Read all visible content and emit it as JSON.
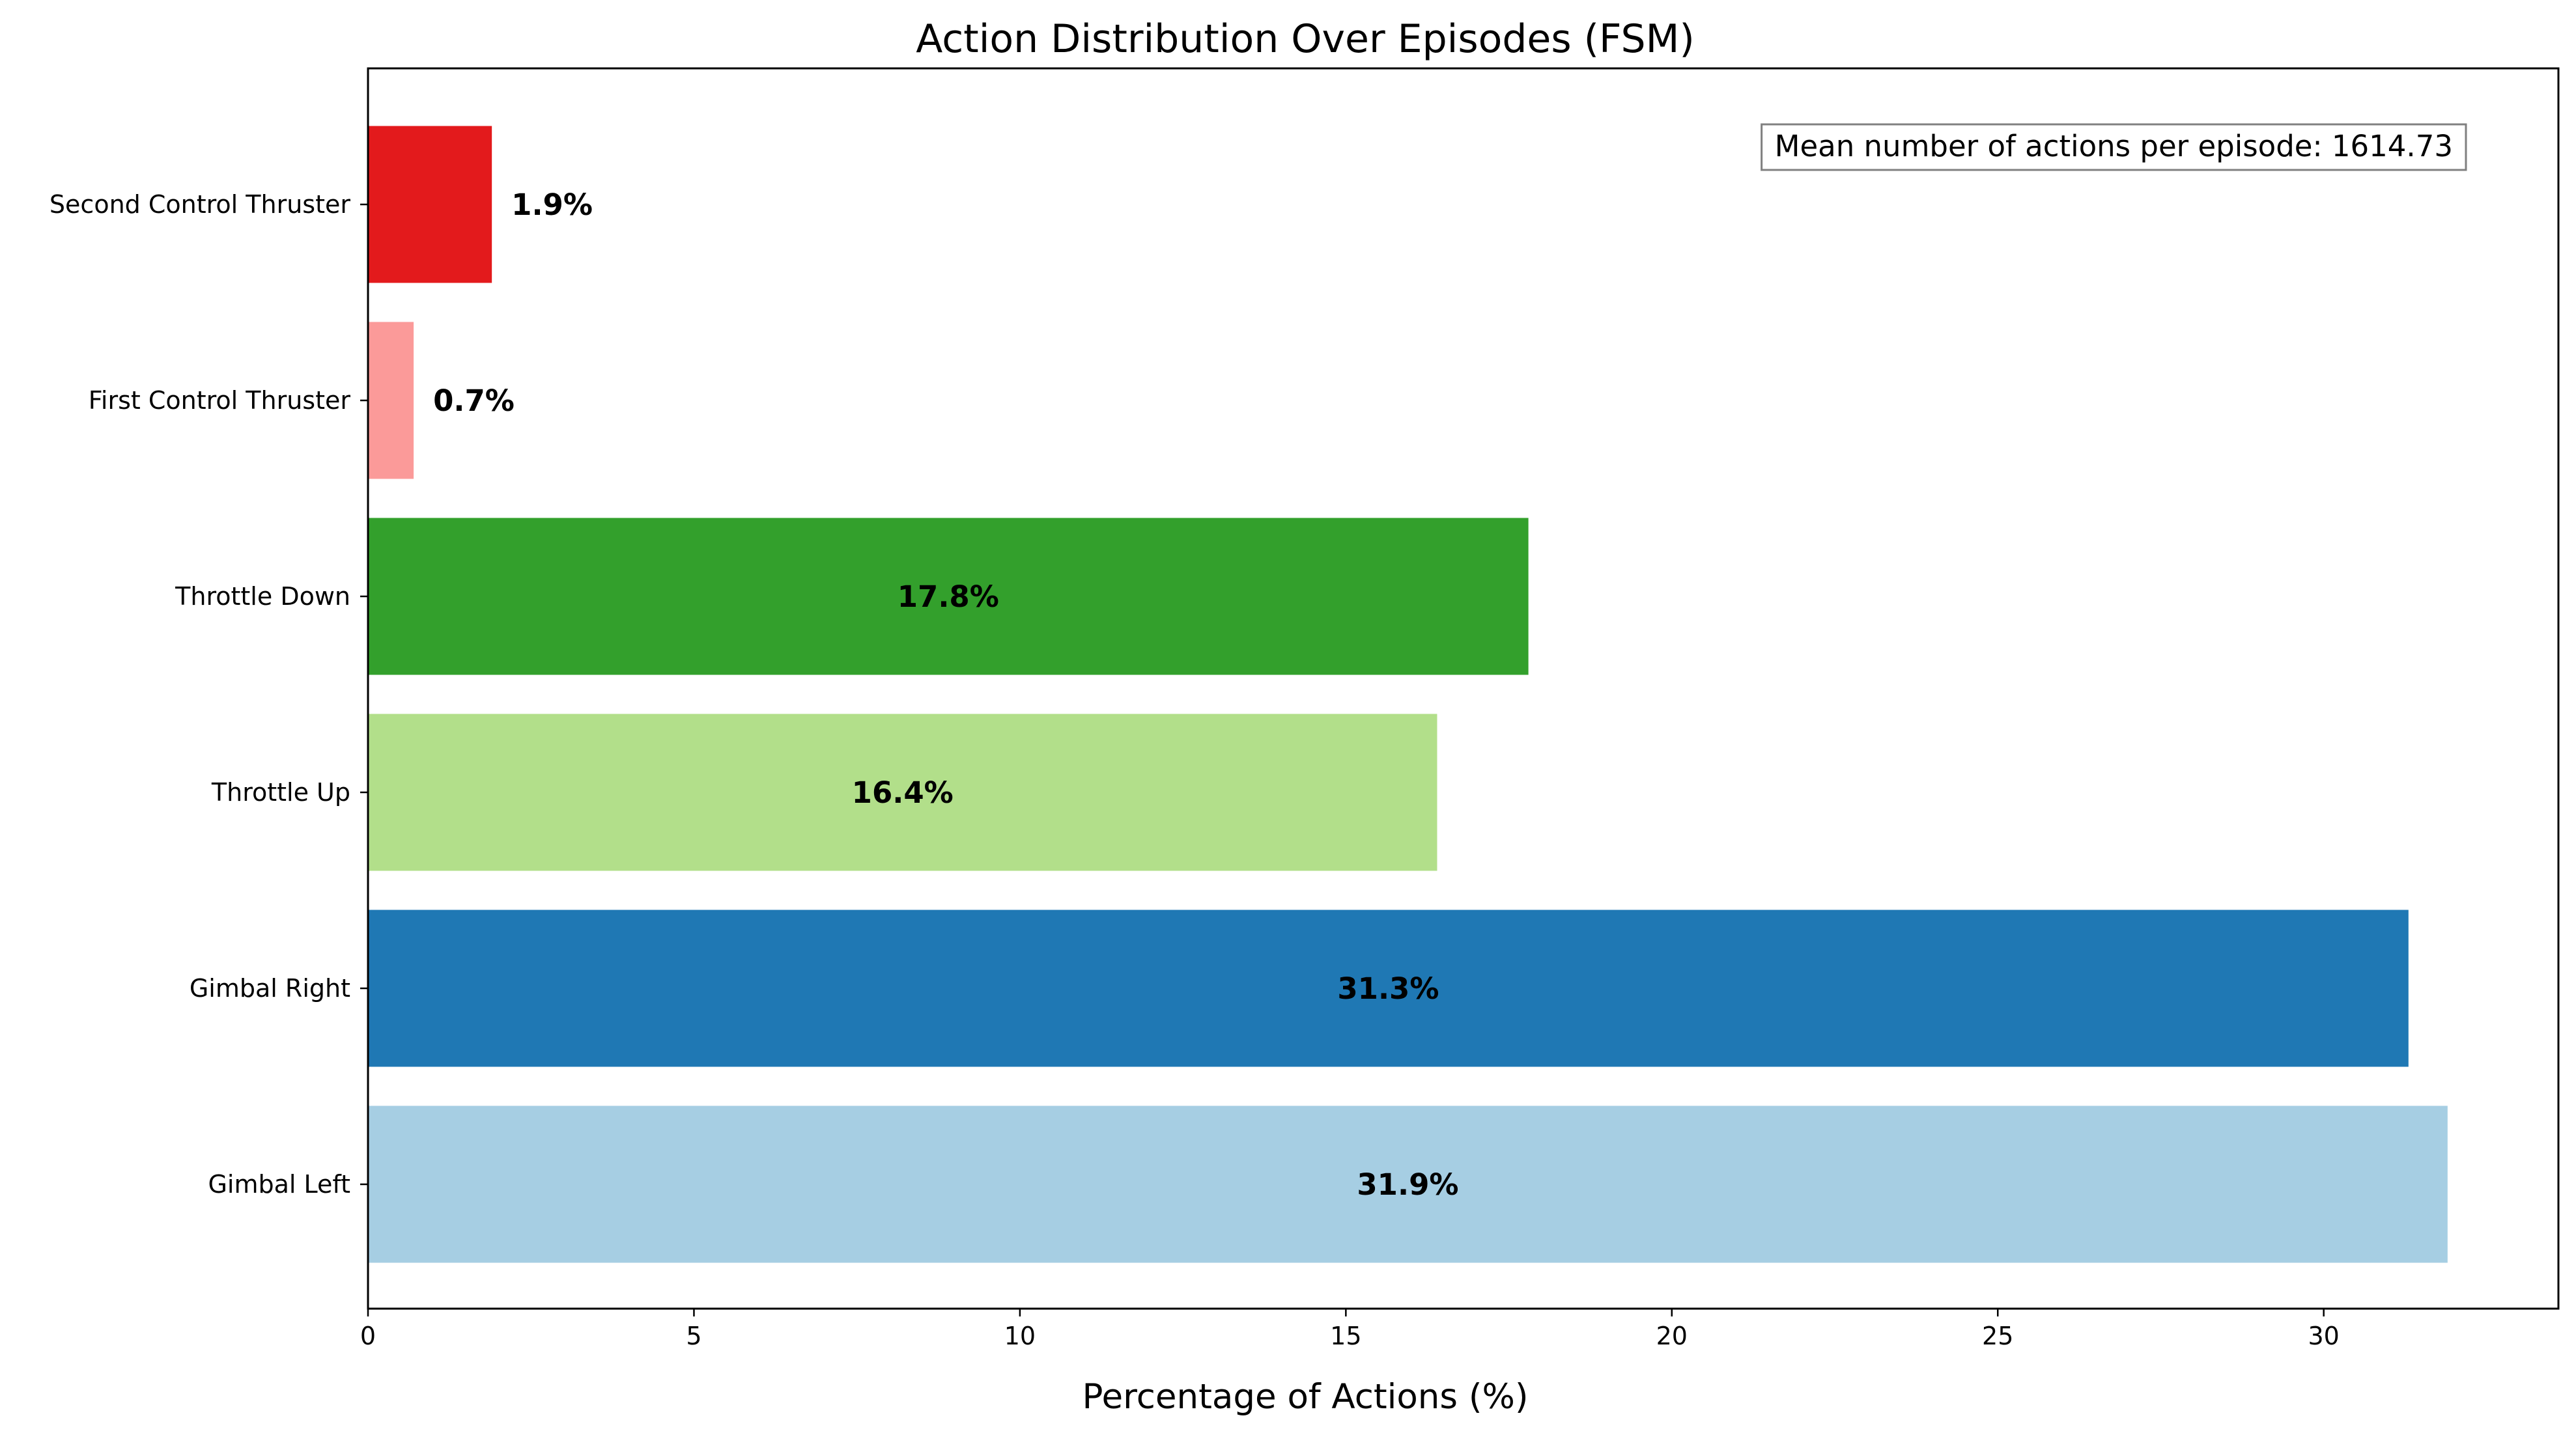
{
  "chart_data": {
    "type": "bar",
    "orientation": "horizontal",
    "title": "Action Distribution Over Episodes (FSM)",
    "xlabel": "Percentage of Actions (%)",
    "ylabel": "",
    "xlim": [
      0,
      33.6
    ],
    "x_ticks": [
      0,
      5,
      10,
      15,
      20,
      25,
      30
    ],
    "categories": [
      "Gimbal Left",
      "Gimbal Right",
      "Throttle Up",
      "Throttle Down",
      "First Control Thruster",
      "Second Control Thruster"
    ],
    "values": [
      31.9,
      31.3,
      16.4,
      17.8,
      0.7,
      1.9
    ],
    "data_labels": [
      "31.9%",
      "31.3%",
      "16.4%",
      "17.8%",
      "0.7%",
      "1.9%"
    ],
    "colors": [
      "#a6cee3",
      "#1f78b4",
      "#b2df8a",
      "#33a02c",
      "#fb9a99",
      "#e31a1c"
    ],
    "annotation": "Mean number of actions per episode: 1614.73",
    "annotation_position": "top-right",
    "grid": false,
    "legend": "none"
  }
}
